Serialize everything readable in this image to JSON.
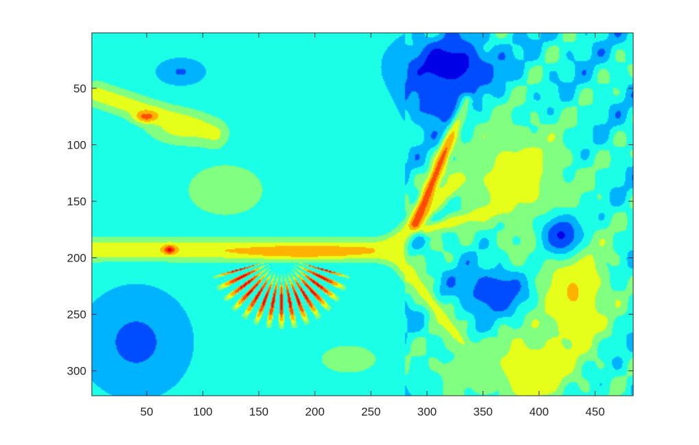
{
  "chart_data": {
    "type": "heatmap",
    "title": "",
    "xlabel": "",
    "ylabel": "",
    "colormap": "jet",
    "xlim": [
      1,
      484
    ],
    "ylim": [
      1,
      322
    ],
    "y_reversed": true,
    "xticks": [
      50,
      100,
      150,
      200,
      250,
      300,
      350,
      400,
      450
    ],
    "yticks": [
      50,
      100,
      150,
      200,
      250,
      300
    ],
    "background_level": 0.38,
    "features": [
      {
        "kind": "band",
        "from": [
          2,
          193
        ],
        "to": [
          270,
          193
        ],
        "width": 7,
        "level": 0.64
      },
      {
        "kind": "band",
        "from": [
          5,
          55
        ],
        "to": [
          110,
          90
        ],
        "width": 8,
        "level": 0.6
      },
      {
        "kind": "blob",
        "x": 50,
        "y": 75,
        "rx": 10,
        "ry": 5,
        "level": 0.85
      },
      {
        "kind": "blob",
        "x": 80,
        "y": 85,
        "rx": 28,
        "ry": 14,
        "level": 0.58
      },
      {
        "kind": "blob",
        "x": 190,
        "y": 195,
        "rx": 55,
        "ry": 5,
        "level": 0.74
      },
      {
        "kind": "blob",
        "x": 70,
        "y": 193,
        "rx": 5,
        "ry": 4,
        "level": 0.9
      },
      {
        "kind": "band",
        "from": [
          265,
          193
        ],
        "to": [
          330,
          130
        ],
        "width": 6,
        "level": 0.6
      },
      {
        "kind": "band",
        "from": [
          290,
          170
        ],
        "to": [
          335,
          60
        ],
        "width": 4,
        "level": 0.82
      },
      {
        "kind": "band",
        "from": [
          270,
          195
        ],
        "to": [
          335,
          280
        ],
        "width": 6,
        "level": 0.6
      },
      {
        "kind": "band",
        "from": [
          300,
          175
        ],
        "to": [
          370,
          155
        ],
        "width": 4,
        "level": 0.6
      },
      {
        "kind": "blob",
        "x": 390,
        "y": 300,
        "rx": 40,
        "ry": 30,
        "level": 0.66
      },
      {
        "kind": "blob",
        "x": 430,
        "y": 230,
        "rx": 35,
        "ry": 60,
        "level": 0.66
      },
      {
        "kind": "blob",
        "x": 380,
        "y": 130,
        "rx": 50,
        "ry": 55,
        "level": 0.6
      },
      {
        "kind": "blob",
        "x": 320,
        "y": 30,
        "rx": 40,
        "ry": 25,
        "level": 0.08
      },
      {
        "kind": "blob",
        "x": 310,
        "y": 60,
        "rx": 25,
        "ry": 25,
        "level": 0.16
      },
      {
        "kind": "blob",
        "x": 360,
        "y": 230,
        "rx": 30,
        "ry": 20,
        "level": 0.16
      },
      {
        "kind": "blob",
        "x": 420,
        "y": 180,
        "rx": 20,
        "ry": 20,
        "level": 0.14
      },
      {
        "kind": "blob",
        "x": 40,
        "y": 275,
        "rx": 40,
        "ry": 40,
        "level": 0.22
      },
      {
        "kind": "blob",
        "x": 80,
        "y": 35,
        "rx": 18,
        "ry": 10,
        "level": 0.24
      },
      {
        "kind": "blob",
        "x": 120,
        "y": 140,
        "rx": 45,
        "ry": 30,
        "level": 0.5
      },
      {
        "kind": "blob",
        "x": 230,
        "y": 290,
        "rx": 40,
        "ry": 20,
        "level": 0.48
      },
      {
        "kind": "blob",
        "x": 330,
        "y": 300,
        "rx": 40,
        "ry": 25,
        "level": 0.48
      },
      {
        "kind": "fan",
        "cx": 170,
        "cy": 200,
        "r0": 12,
        "r1": 66,
        "a0": 195,
        "a1": 345,
        "spokes": 14,
        "level": 0.8
      }
    ]
  }
}
